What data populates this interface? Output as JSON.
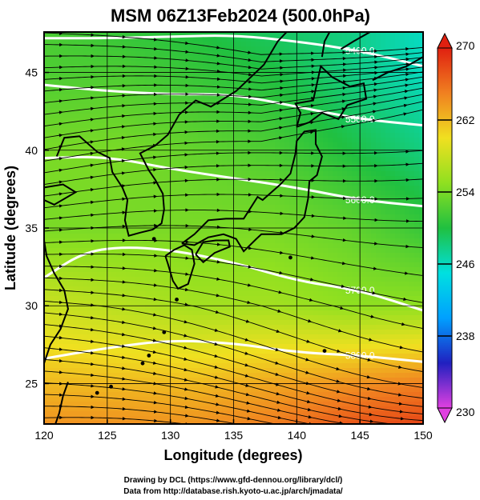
{
  "chart_data": {
    "type": "heatmap",
    "title": "MSM 06Z13Feb2024 (500.0hPa)",
    "xlabel": "Longitude (degrees)",
    "ylabel": "Latitude  (degrees)",
    "xlim": [
      120,
      150
    ],
    "ylim": [
      22.4,
      47.6
    ],
    "xticks": [
      "120",
      "125",
      "130",
      "135",
      "140",
      "145",
      "150"
    ],
    "yticks": [
      "25",
      "30",
      "35",
      "40",
      "45"
    ],
    "colorbar": {
      "min": 230,
      "max": 270,
      "ticks": [
        "270",
        "262",
        "254",
        "246",
        "238",
        "230"
      ],
      "colors": [
        "#e040e0",
        "#2020c0",
        "#00a0ff",
        "#00e0e0",
        "#20c040",
        "#90e020",
        "#f0e020",
        "#f08020",
        "#e02010"
      ]
    },
    "temperature_field": [
      {
        "lat": 47.6,
        "lon_values": [
          252,
          251,
          250,
          249,
          248,
          246
        ]
      },
      {
        "lat": 45,
        "lon_values": [
          252,
          252,
          251,
          250,
          248,
          246
        ]
      },
      {
        "lat": 40,
        "lon_values": [
          254,
          254,
          253,
          252,
          250,
          248
        ]
      },
      {
        "lat": 35,
        "lon_values": [
          254,
          254,
          254,
          254,
          253,
          251
        ]
      },
      {
        "lat": 30,
        "lon_values": [
          258,
          257,
          256,
          256,
          255,
          255
        ]
      },
      {
        "lat": 25,
        "lon_values": [
          262,
          262,
          262,
          263,
          264,
          265
        ]
      },
      {
        "lat": 22.4,
        "lon_values": [
          264,
          264,
          264,
          265,
          267,
          268
        ]
      }
    ],
    "contours": [
      {
        "label": "5400.0",
        "points": [
          [
            120,
            47.2
          ],
          [
            125,
            47.2
          ],
          [
            130,
            47.3
          ],
          [
            135,
            47.4
          ],
          [
            140,
            47.0
          ],
          [
            145,
            46.4
          ],
          [
            150,
            45.4
          ]
        ]
      },
      {
        "label": "5500.0",
        "points": [
          [
            120,
            44.2
          ],
          [
            125,
            43.8
          ],
          [
            130,
            43.6
          ],
          [
            135,
            43.6
          ],
          [
            140,
            42.8
          ],
          [
            145,
            42.0
          ],
          [
            150,
            41.6
          ]
        ]
      },
      {
        "label": "5600.0",
        "points": [
          [
            120,
            39.5
          ],
          [
            125,
            39.6
          ],
          [
            130,
            38.8
          ],
          [
            135,
            38.2
          ],
          [
            140,
            37.6
          ],
          [
            145,
            36.8
          ],
          [
            150,
            36.4
          ]
        ]
      },
      {
        "label": "5700.0",
        "points": [
          [
            120,
            31.8
          ],
          [
            123,
            33.4
          ],
          [
            126,
            33.8
          ],
          [
            130,
            33.6
          ],
          [
            135,
            32.8
          ],
          [
            140,
            31.6
          ],
          [
            145,
            31.0
          ],
          [
            150,
            29.7
          ]
        ]
      },
      {
        "label": "5800.0",
        "points": [
          [
            120,
            26.6
          ],
          [
            125,
            27.3
          ],
          [
            130,
            27.8
          ],
          [
            135,
            27.6
          ],
          [
            140,
            27.0
          ],
          [
            145,
            26.8
          ],
          [
            150,
            26.4
          ]
        ]
      }
    ]
  },
  "credits": {
    "line1": "Drawing by DCL (https://www.gfd-dennou.org/library/dcl/)",
    "line2": "Data from http://database.rish.kyoto-u.ac.jp/arch/jmadata/"
  }
}
